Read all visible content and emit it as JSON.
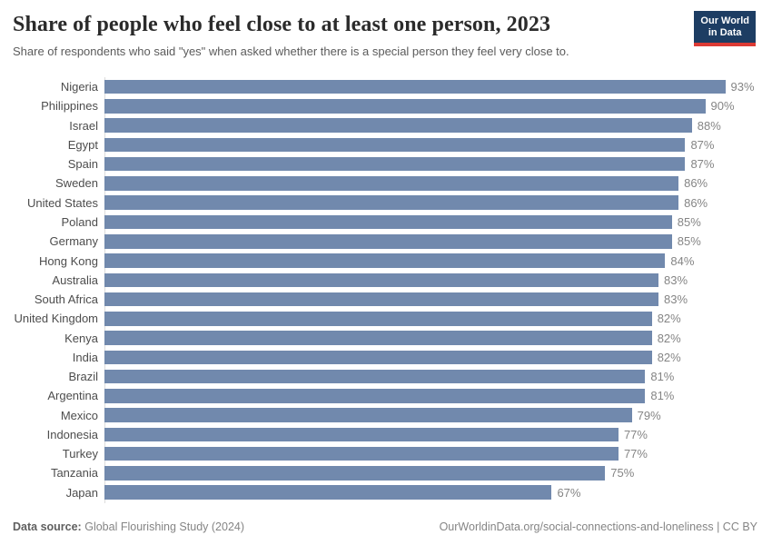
{
  "header": {
    "title": "Share of people who feel close to at least one person, 2023",
    "subtitle": "Share of respondents who said \"yes\" when asked whether there is a special person they feel very close to.",
    "logo": {
      "line1": "Our World",
      "line2": "in Data",
      "bg_color": "#1d3d63",
      "accent_color": "#dc3a34"
    }
  },
  "chart_data": {
    "type": "bar",
    "orientation": "horizontal",
    "title": "Share of people who feel close to at least one person, 2023",
    "subtitle": "Share of respondents who said \"yes\" when asked whether there is a special person they feel very close to.",
    "categories": [
      "Nigeria",
      "Philippines",
      "Israel",
      "Egypt",
      "Spain",
      "Sweden",
      "United States",
      "Poland",
      "Germany",
      "Hong Kong",
      "Australia",
      "South Africa",
      "United Kingdom",
      "Kenya",
      "India",
      "Brazil",
      "Argentina",
      "Mexico",
      "Indonesia",
      "Turkey",
      "Tanzania",
      "Japan"
    ],
    "values": [
      93,
      90,
      88,
      87,
      87,
      86,
      86,
      85,
      85,
      84,
      83,
      83,
      82,
      82,
      82,
      81,
      81,
      79,
      77,
      77,
      75,
      67
    ],
    "value_suffix": "%",
    "xlim": [
      0,
      100
    ],
    "grid": false,
    "legend": "none",
    "bar_color": "#7189ad",
    "label_color": "#4d4d4d",
    "value_label_color": "#858585",
    "axis_line_color": "#dcdcdc"
  },
  "footer": {
    "datasource_label": "Data source:",
    "datasource_value": "Global Flourishing Study (2024)",
    "url": "OurWorldinData.org/social-connections-and-loneliness",
    "license": "| CC BY"
  }
}
